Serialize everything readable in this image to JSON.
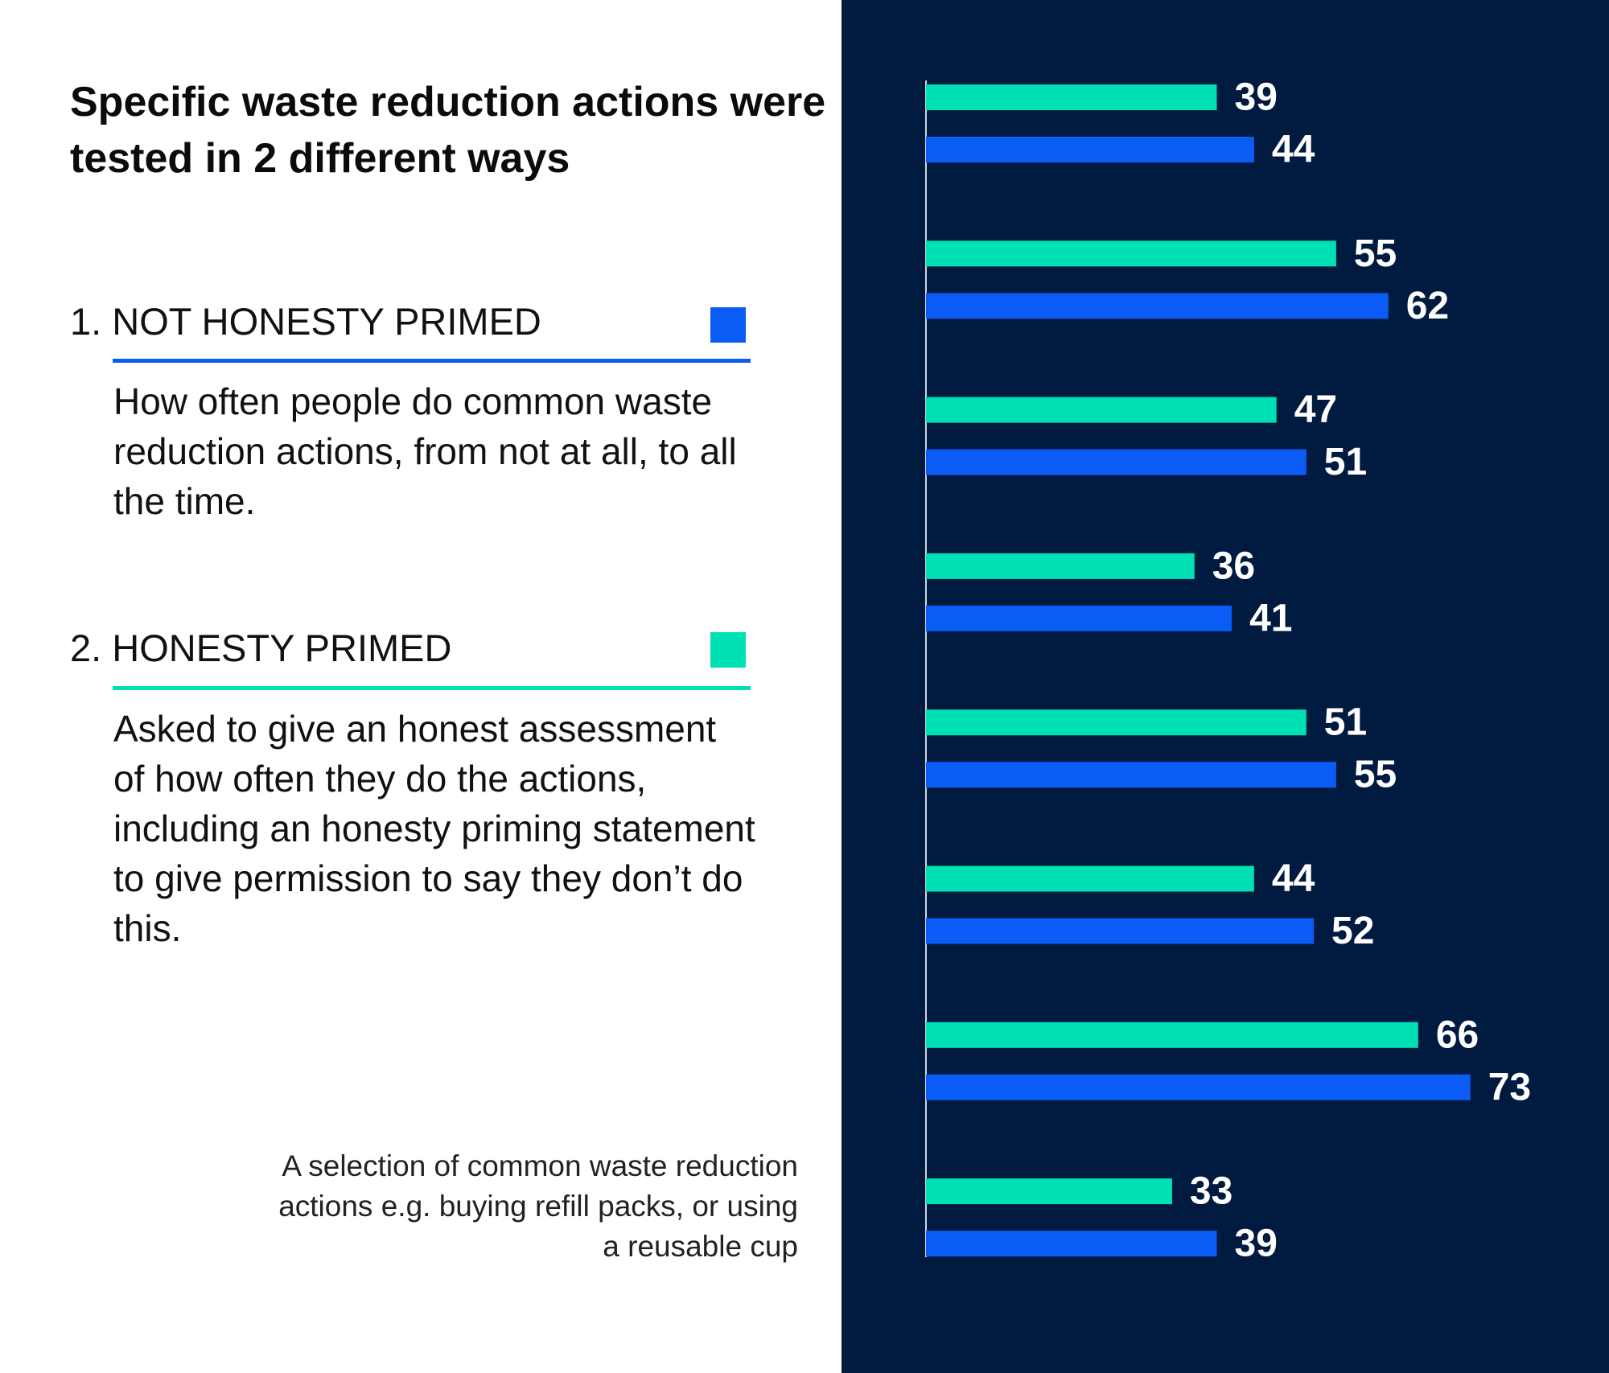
{
  "title": "Specific waste reduction actions were tested in 2 different ways",
  "legend": [
    {
      "heading": "1. NOT HONESTY PRIMED",
      "color": "#0b5cf5",
      "description": "How often people do common waste reduction actions, from not at all, to all the time."
    },
    {
      "heading": "2. HONESTY PRIMED",
      "color": "#00e0b5",
      "description": "Asked to give an honest assessment of how often they do the actions, including an honesty priming statement to give permission to say they don’t do this."
    }
  ],
  "note": "A selection of common waste reduction actions e.g. buying refill packs, or using a reusable cup",
  "colors": {
    "panel_background": "#011a40",
    "not_honesty_primed": "#0b5cf5",
    "honesty_primed": "#00e0b5",
    "value_label": "#ffffff"
  },
  "chart_data": {
    "type": "bar",
    "orientation": "horizontal",
    "categories": [
      "",
      "",
      "",
      "",
      "",
      "",
      "",
      ""
    ],
    "series": [
      {
        "name": "2. HONESTY PRIMED",
        "color": "#00e0b5",
        "values": [
          39,
          55,
          47,
          36,
          51,
          44,
          66,
          33
        ]
      },
      {
        "name": "1. NOT HONESTY PRIMED",
        "color": "#0b5cf5",
        "values": [
          44,
          62,
          51,
          41,
          55,
          52,
          73,
          39
        ]
      }
    ],
    "xlim": [
      0,
      100
    ],
    "grid": false,
    "data_labels": true
  }
}
